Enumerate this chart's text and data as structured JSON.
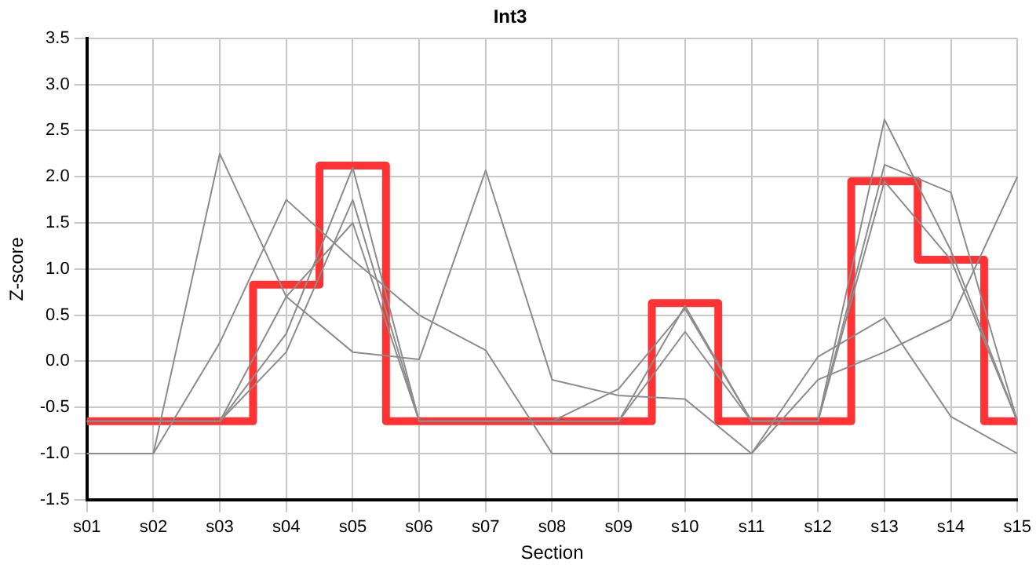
{
  "chart_data": {
    "type": "line",
    "title": "Int3",
    "xlabel": "Section",
    "ylabel": "Z-score",
    "categories": [
      "s01",
      "s02",
      "s03",
      "s04",
      "s05",
      "s06",
      "s07",
      "s08",
      "s09",
      "s10",
      "s11",
      "s12",
      "s13",
      "s14",
      "s15"
    ],
    "ylim": [
      -1.5,
      3.5
    ],
    "yticks": [
      {
        "value": -1.5,
        "label": "-1.5"
      },
      {
        "value": -1,
        "label": "-1.0"
      },
      {
        "value": -0.5,
        "label": "-0.5"
      },
      {
        "value": 0,
        "label": "0.0"
      },
      {
        "value": 0.5,
        "label": "0.5"
      },
      {
        "value": 1,
        "label": "1.0"
      },
      {
        "value": 1.5,
        "label": "1.5"
      },
      {
        "value": 2,
        "label": "2.0"
      },
      {
        "value": 2.5,
        "label": "2.5"
      },
      {
        "value": 3,
        "label": "3.0"
      },
      {
        "value": 3.5,
        "label": "3.5"
      }
    ],
    "grid": true,
    "legend": false,
    "marker": "none",
    "series": [
      {
        "color": "#8c8c8c",
        "values": [
          -1,
          -1,
          2.25,
          0.7,
          0.1,
          0.02,
          2.07,
          -0.2,
          -0.37,
          -0.41,
          -1,
          0.05,
          0.47,
          -0.6,
          -1
        ]
      },
      {
        "color": "#8c8c8c",
        "values": [
          -1,
          -1,
          0.2,
          1.75,
          1.1,
          0.5,
          0.12,
          -1,
          -1,
          -1,
          -1,
          -0.2,
          0.1,
          0.45,
          2
        ]
      },
      {
        "color": "#8c8c8c",
        "values": [
          -0.65,
          -0.65,
          -0.65,
          0.3,
          2.1,
          -0.65,
          -0.65,
          -0.65,
          -0.65,
          0.6,
          -0.65,
          -0.65,
          2.62,
          1.2,
          -0.65
        ]
      },
      {
        "color": "#8c8c8c",
        "values": [
          -0.65,
          -0.65,
          -0.65,
          0.1,
          1.75,
          -0.65,
          -0.65,
          -0.65,
          -0.3,
          0.57,
          -0.65,
          -0.65,
          2.13,
          1.83,
          -0.65
        ]
      },
      {
        "color": "#8c8c8c",
        "values": [
          -0.65,
          -0.65,
          -0.65,
          0.7,
          1.5,
          -0.65,
          -0.65,
          -0.65,
          -0.65,
          0.32,
          -0.65,
          -0.65,
          1.95,
          1.1,
          -0.65
        ]
      },
      {
        "type": "step",
        "color": "#ff3333",
        "values": [
          -0.65,
          -0.65,
          -0.65,
          0.83,
          2.12,
          -0.65,
          -0.65,
          -0.65,
          -0.65,
          0.63,
          -0.65,
          -0.65,
          1.95,
          1.1,
          -0.65
        ]
      }
    ]
  }
}
